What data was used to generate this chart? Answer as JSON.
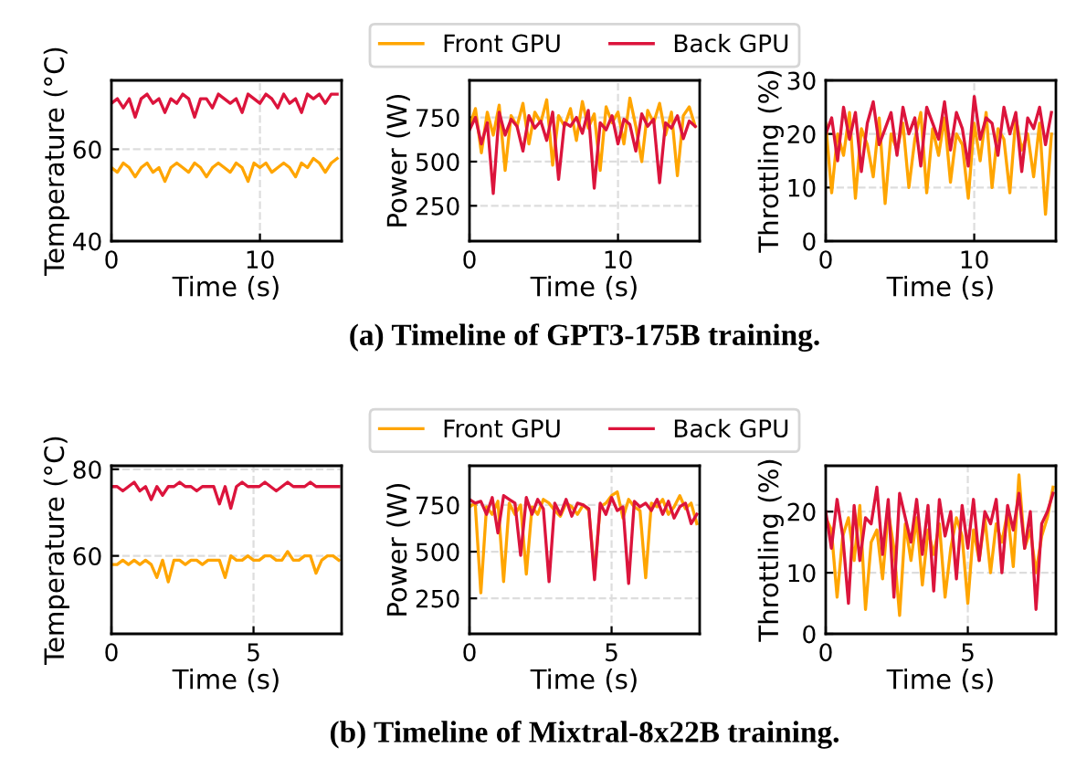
{
  "chart_data": [
    {
      "type": "line",
      "xlabel": "Time (s)",
      "ylabel": "Temperature (°C)",
      "xlim": [
        0,
        15.5
      ],
      "xticks": [
        0,
        10
      ],
      "ylim": [
        40,
        75
      ],
      "yticks": [
        40,
        60
      ],
      "grid": true,
      "legend": false,
      "x": [
        0,
        0.4,
        0.8,
        1.2,
        1.6,
        2.0,
        2.4,
        2.8,
        3.2,
        3.6,
        4.0,
        4.4,
        4.8,
        5.2,
        5.6,
        6.0,
        6.4,
        6.8,
        7.2,
        7.6,
        8.0,
        8.4,
        8.8,
        9.2,
        9.6,
        10.0,
        10.4,
        10.8,
        11.2,
        11.6,
        12.0,
        12.4,
        12.8,
        13.2,
        13.6,
        14.0,
        14.4,
        14.8,
        15.2
      ],
      "series": [
        {
          "color": "#ffa500",
          "values": [
            56,
            55,
            57,
            56,
            54,
            56,
            57,
            55,
            56,
            53,
            56,
            57,
            56,
            55,
            57,
            56,
            54,
            56,
            57,
            56,
            55,
            57,
            56,
            53,
            57,
            56,
            57,
            55,
            56,
            57,
            56,
            54,
            57,
            56,
            58,
            57,
            55,
            57,
            58
          ]
        },
        {
          "color": "#dc143c",
          "values": [
            70,
            71,
            69,
            71,
            67,
            71,
            72,
            70,
            71,
            68,
            71,
            70,
            72,
            71,
            67,
            71,
            71,
            69,
            72,
            71,
            70,
            71,
            68,
            72,
            71,
            70,
            72,
            71,
            69,
            72,
            70,
            71,
            68,
            72,
            71,
            72,
            70,
            72,
            72
          ]
        }
      ]
    },
    {
      "type": "line",
      "xlabel": "Time (s)",
      "ylabel": "Power (W)",
      "xlim": [
        0,
        15.5
      ],
      "xticks": [
        0,
        10
      ],
      "ylim": [
        50,
        960
      ],
      "yticks": [
        250,
        500,
        750
      ],
      "grid": true,
      "legend": "top",
      "annotations": [
        "(a) Timeline of GPT3-175B training."
      ],
      "x": [
        0,
        0.4,
        0.8,
        1.2,
        1.6,
        2.0,
        2.4,
        2.8,
        3.2,
        3.6,
        4.0,
        4.4,
        4.8,
        5.2,
        5.6,
        6.0,
        6.4,
        6.8,
        7.2,
        7.6,
        8.0,
        8.4,
        8.8,
        9.2,
        9.6,
        10.0,
        10.4,
        10.8,
        11.2,
        11.6,
        12.0,
        12.4,
        12.8,
        13.2,
        13.6,
        14.0,
        14.4,
        14.8,
        15.2
      ],
      "series": [
        {
          "name": "Front GPU",
          "color": "#ffa500",
          "values": [
            700,
            800,
            550,
            780,
            650,
            820,
            450,
            760,
            700,
            830,
            600,
            780,
            720,
            850,
            480,
            760,
            700,
            800,
            620,
            840,
            690,
            770,
            450,
            810,
            720,
            780,
            600,
            860,
            700,
            500,
            790,
            720,
            830,
            650,
            780,
            420,
            760,
            810,
            700
          ]
        },
        {
          "name": "Back GPU",
          "color": "#dc143c",
          "values": [
            680,
            750,
            600,
            720,
            320,
            780,
            650,
            740,
            700,
            560,
            760,
            690,
            730,
            620,
            780,
            400,
            720,
            700,
            750,
            660,
            790,
            350,
            720,
            680,
            760,
            600,
            740,
            710,
            560,
            770,
            700,
            740,
            380,
            720,
            690,
            760,
            630,
            730,
            700
          ]
        }
      ]
    },
    {
      "type": "line",
      "xlabel": "Time (s)",
      "ylabel": "Throttling (%)",
      "xlim": [
        0,
        15.5
      ],
      "xticks": [
        0,
        10
      ],
      "ylim": [
        0,
        30
      ],
      "yticks": [
        0,
        10,
        20,
        30
      ],
      "grid": true,
      "legend": false,
      "x": [
        0,
        0.4,
        0.8,
        1.2,
        1.6,
        2.0,
        2.4,
        2.8,
        3.2,
        3.6,
        4.0,
        4.4,
        4.8,
        5.2,
        5.6,
        6.0,
        6.4,
        6.8,
        7.2,
        7.6,
        8.0,
        8.4,
        8.8,
        9.2,
        9.6,
        10.0,
        10.4,
        10.8,
        11.2,
        11.6,
        12.0,
        12.4,
        12.8,
        13.2,
        13.6,
        14.0,
        14.4,
        14.8,
        15.2
      ],
      "series": [
        {
          "color": "#ffa500",
          "values": [
            22,
            9,
            20,
            16,
            24,
            8,
            21,
            18,
            12,
            23,
            7,
            20,
            17,
            22,
            10,
            19,
            24,
            9,
            21,
            16,
            23,
            11,
            20,
            18,
            8,
            22,
            15,
            24,
            10,
            21,
            19,
            9,
            23,
            17,
            20,
            12,
            22,
            5,
            20
          ]
        },
        {
          "color": "#dc143c",
          "values": [
            20,
            23,
            15,
            25,
            19,
            24,
            13,
            22,
            26,
            18,
            21,
            24,
            16,
            25,
            20,
            23,
            14,
            25,
            22,
            19,
            26,
            17,
            24,
            21,
            14,
            27,
            19,
            23,
            22,
            16,
            25,
            20,
            24,
            13,
            23,
            21,
            25,
            18,
            24
          ]
        }
      ]
    },
    {
      "type": "line",
      "xlabel": "Time (s)",
      "ylabel": "Temperature (°C)",
      "xlim": [
        0,
        8.1
      ],
      "xticks": [
        0,
        5
      ],
      "ylim": [
        42,
        80.8
      ],
      "yticks": [
        60,
        80
      ],
      "grid": true,
      "legend": false,
      "x": [
        0,
        0.2,
        0.4,
        0.6,
        0.8,
        1.0,
        1.2,
        1.4,
        1.6,
        1.8,
        2.0,
        2.2,
        2.4,
        2.6,
        2.8,
        3.0,
        3.2,
        3.4,
        3.6,
        3.8,
        4.0,
        4.2,
        4.4,
        4.6,
        4.8,
        5.0,
        5.2,
        5.4,
        5.6,
        5.8,
        6.0,
        6.2,
        6.4,
        6.6,
        6.8,
        7.0,
        7.2,
        7.4,
        7.6,
        7.8,
        8.0
      ],
      "series": [
        {
          "color": "#ffa500",
          "values": [
            58,
            58,
            59,
            58,
            59,
            58,
            59,
            58,
            55,
            59,
            54,
            59,
            59,
            58,
            59,
            59,
            58,
            59,
            59,
            59,
            55,
            60,
            59,
            59,
            60,
            59,
            59,
            60,
            60,
            59,
            59,
            61,
            59,
            59,
            60,
            60,
            56,
            59,
            60,
            60,
            59
          ]
        },
        {
          "color": "#dc143c",
          "values": [
            76,
            76,
            75,
            76,
            77,
            75,
            76,
            73,
            76,
            74,
            76,
            76,
            77,
            76,
            76,
            75,
            76,
            76,
            76,
            72,
            76,
            71,
            76,
            77,
            76,
            76,
            76,
            77,
            76,
            75,
            76,
            77,
            76,
            76,
            76,
            77,
            76,
            76,
            76,
            76,
            76
          ]
        }
      ]
    },
    {
      "type": "line",
      "xlabel": "Time (s)",
      "ylabel": "Power (W)",
      "xlim": [
        0,
        8.1
      ],
      "xticks": [
        0,
        5
      ],
      "ylim": [
        60,
        960
      ],
      "yticks": [
        250,
        500,
        750
      ],
      "grid": true,
      "legend": "top",
      "annotations": [
        "(b) Timeline of Mixtral-8x22B training."
      ],
      "x": [
        0,
        0.2,
        0.4,
        0.6,
        0.8,
        1.0,
        1.2,
        1.4,
        1.6,
        1.8,
        2.0,
        2.2,
        2.4,
        2.6,
        2.8,
        3.0,
        3.2,
        3.4,
        3.6,
        3.8,
        4.0,
        4.2,
        4.4,
        4.6,
        4.8,
        5.0,
        5.2,
        5.4,
        5.6,
        5.8,
        6.0,
        6.2,
        6.4,
        6.6,
        6.8,
        7.0,
        7.2,
        7.4,
        7.6,
        7.8,
        8.0
      ],
      "series": [
        {
          "name": "Front GPU",
          "color": "#ffa500",
          "values": [
            740,
            760,
            280,
            740,
            700,
            770,
            340,
            760,
            700,
            750,
            380,
            740,
            700,
            780,
            760,
            720,
            690,
            760,
            740,
            700,
            750,
            720,
            380,
            740,
            760,
            800,
            820,
            680,
            780,
            740,
            720,
            360,
            760,
            740,
            780,
            700,
            740,
            800,
            730,
            760,
            650
          ]
        },
        {
          "name": "Back GPU",
          "color": "#dc143c",
          "values": [
            780,
            760,
            770,
            700,
            790,
            600,
            800,
            780,
            760,
            480,
            790,
            700,
            780,
            730,
            340,
            760,
            700,
            780,
            690,
            760,
            750,
            730,
            350,
            760,
            700,
            790,
            720,
            740,
            330,
            770,
            740,
            760,
            720,
            780,
            700,
            770,
            680,
            740,
            760,
            650,
            700
          ]
        }
      ]
    },
    {
      "type": "line",
      "xlabel": "Time (s)",
      "ylabel": "Throttling (%)",
      "xlim": [
        0,
        8.1
      ],
      "xticks": [
        0,
        5
      ],
      "ylim": [
        0,
        27.5
      ],
      "yticks": [
        0,
        10,
        20
      ],
      "grid": true,
      "legend": false,
      "x": [
        0,
        0.2,
        0.4,
        0.6,
        0.8,
        1.0,
        1.2,
        1.4,
        1.6,
        1.8,
        2.0,
        2.2,
        2.4,
        2.6,
        2.8,
        3.0,
        3.2,
        3.4,
        3.6,
        3.8,
        4.0,
        4.2,
        4.4,
        4.6,
        4.8,
        5.0,
        5.2,
        5.4,
        5.6,
        5.8,
        6.0,
        6.2,
        6.4,
        6.6,
        6.8,
        7.0,
        7.2,
        7.4,
        7.6,
        7.8,
        8.0
      ],
      "series": [
        {
          "color": "#ffa500",
          "values": [
            19,
            17,
            6,
            16,
            19,
            12,
            21,
            4,
            15,
            17,
            9,
            20,
            14,
            3,
            18,
            12,
            19,
            8,
            17,
            13,
            18,
            6,
            14,
            19,
            16,
            5,
            17,
            12,
            19,
            10,
            18,
            15,
            20,
            11,
            26,
            14,
            17,
            10,
            16,
            19,
            24
          ]
        },
        {
          "color": "#dc143c",
          "values": [
            20,
            14,
            22,
            16,
            5,
            21,
            12,
            19,
            18,
            24,
            13,
            22,
            6,
            23,
            19,
            15,
            22,
            13,
            21,
            7,
            22,
            16,
            20,
            9,
            21,
            14,
            22,
            12,
            20,
            18,
            22,
            10,
            21,
            17,
            23,
            14,
            20,
            4,
            18,
            20,
            23
          ]
        }
      ]
    }
  ]
}
